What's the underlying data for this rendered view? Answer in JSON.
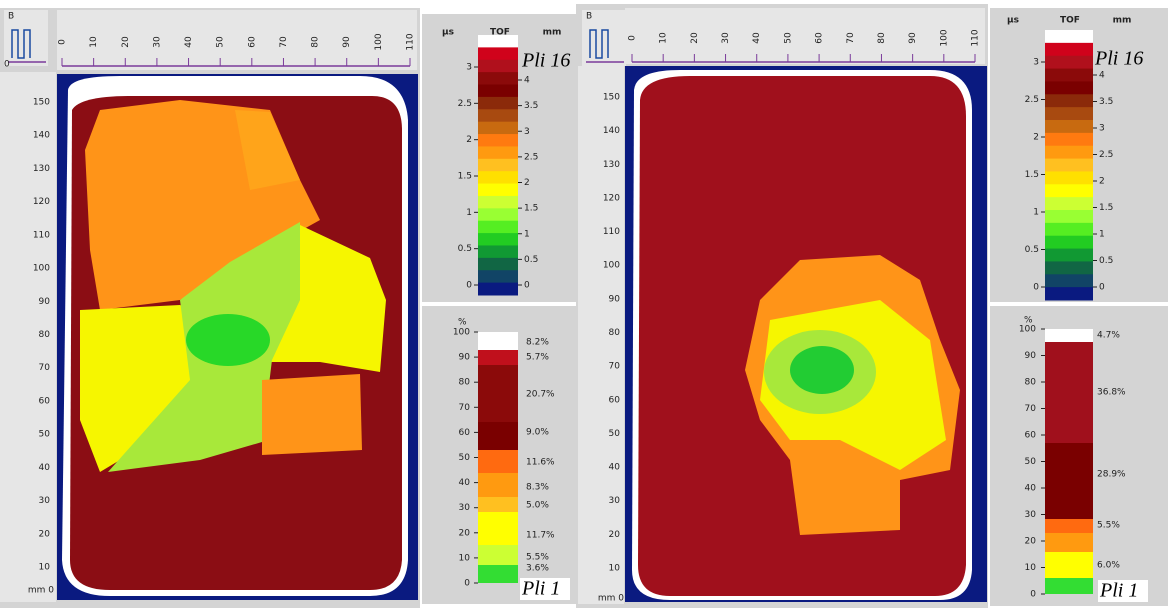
{
  "panels": [
    {
      "icon_label": "B",
      "origin_label": "0",
      "x_ticks": [
        0,
        10,
        20,
        30,
        40,
        50,
        60,
        70,
        80,
        90,
        100,
        110
      ],
      "y_ticks": [
        150,
        140,
        130,
        120,
        110,
        100,
        90,
        80,
        70,
        60,
        50,
        40,
        30,
        20,
        10
      ],
      "y_origin_label": "mm 0",
      "tof": {
        "left_unit": "µs",
        "title": "TOF",
        "right_unit": "mm",
        "us_ticks": [
          3,
          2.5,
          2,
          1.5,
          1,
          0.5,
          0
        ],
        "mm_ticks": [
          4,
          3.5,
          3,
          2.5,
          2,
          1.5,
          1,
          0.5,
          0
        ],
        "ply_label": "Pli 16"
      },
      "histogram": {
        "unit": "%",
        "ticks": [
          100,
          90,
          80,
          70,
          60,
          50,
          40,
          30,
          20,
          10,
          0
        ],
        "segment_labels": [
          "8.2%",
          "5.7%",
          "20.7%",
          "9.0%",
          "11.6%",
          "8.3%",
          "5.0%",
          "11.7%",
          "5.5%",
          "3.6%"
        ],
        "ply_label": "Pli 1"
      }
    },
    {
      "icon_label": "B",
      "origin_label": "0",
      "x_ticks": [
        0,
        10,
        20,
        30,
        40,
        50,
        60,
        70,
        80,
        90,
        100,
        110
      ],
      "y_ticks": [
        150,
        140,
        130,
        120,
        110,
        100,
        90,
        80,
        70,
        60,
        50,
        40,
        30,
        20,
        10
      ],
      "y_origin_label": "mm 0",
      "tof": {
        "left_unit": "µs",
        "title": "TOF",
        "right_unit": "mm",
        "us_ticks": [
          3,
          2.5,
          2,
          1.5,
          1,
          0.5,
          0
        ],
        "mm_ticks": [
          4,
          3.5,
          3,
          2.5,
          2,
          1.5,
          1,
          0.5,
          0
        ],
        "ply_label": "Pli 16"
      },
      "histogram": {
        "unit": "%",
        "ticks": [
          100,
          90,
          80,
          70,
          60,
          50,
          40,
          30,
          20,
          10,
          0
        ],
        "segment_labels": [
          "4.7%",
          "36.8%",
          "28.9%",
          "5.5%",
          "6.0%"
        ],
        "ply_label": "Pli 1"
      }
    }
  ]
}
